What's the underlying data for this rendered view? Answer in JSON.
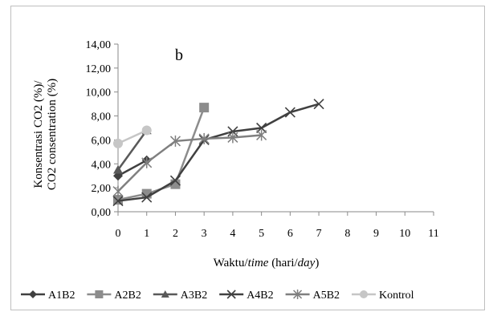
{
  "chart_data": {
    "type": "line",
    "panel_label": "b",
    "xlabel_parts": [
      "Waktu/",
      "time",
      " (hari/",
      "day",
      ")"
    ],
    "ylabel_lines": [
      "Konsentrasi CO2 (%)/",
      "CO2 consentration (%)"
    ],
    "x_ticks": [
      "0",
      "1",
      "2",
      "3",
      "4",
      "5",
      "6",
      "7",
      "8",
      "9",
      "10",
      "11"
    ],
    "y_ticks": [
      "0,00",
      "2,00",
      "4,00",
      "6,00",
      "8,00",
      "10,00",
      "12,00",
      "14,00"
    ],
    "xlim": [
      0,
      11
    ],
    "ylim": [
      0,
      14
    ],
    "grid": false,
    "legend_position": "bottom",
    "series": [
      {
        "name": "A1B2",
        "marker": "diamond",
        "color": "#404040",
        "x": [
          0,
          1
        ],
        "y": [
          3.0,
          4.3
        ]
      },
      {
        "name": "A2B2",
        "marker": "square",
        "color": "#8c8c8c",
        "x": [
          0,
          1,
          2,
          3
        ],
        "y": [
          1.0,
          1.5,
          2.3,
          8.7
        ]
      },
      {
        "name": "A3B2",
        "marker": "triangle",
        "color": "#595959",
        "x": [
          0,
          1
        ],
        "y": [
          3.5,
          6.8
        ]
      },
      {
        "name": "A4B2",
        "marker": "x",
        "color": "#404040",
        "x": [
          0,
          1,
          2,
          3,
          4,
          5,
          6,
          7
        ],
        "y": [
          0.9,
          1.2,
          2.6,
          6.0,
          6.7,
          7.0,
          8.3,
          9.0
        ]
      },
      {
        "name": "A5B2",
        "marker": "star",
        "color": "#7f7f7f",
        "x": [
          0,
          1,
          2,
          3,
          4,
          5
        ],
        "y": [
          1.7,
          4.1,
          5.9,
          6.1,
          6.2,
          6.4
        ]
      },
      {
        "name": "Kontrol",
        "marker": "circle",
        "color": "#c6c6c6",
        "x": [
          0,
          1
        ],
        "y": [
          5.7,
          6.8
        ]
      }
    ]
  }
}
